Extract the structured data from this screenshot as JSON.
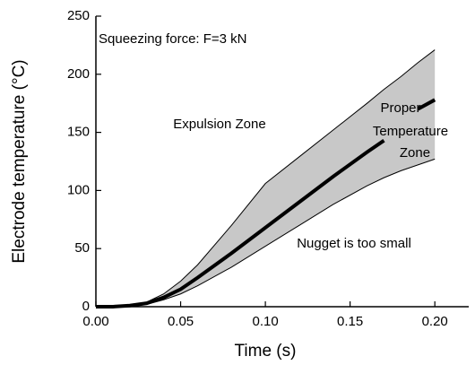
{
  "chart_data": {
    "type": "line",
    "x_label": "Time (s)",
    "y_label": "Electrode temperature (°C)",
    "x": [
      0,
      0.01,
      0.02,
      0.03,
      0.04,
      0.05,
      0.06,
      0.08,
      0.1,
      0.12,
      0.14,
      0.16,
      0.17,
      0.18,
      0.19,
      0.2
    ],
    "band": {
      "upper": [
        0,
        0,
        1,
        4,
        11,
        22,
        36,
        70,
        106,
        129,
        152,
        175,
        187,
        198,
        210,
        221
      ],
      "lower": [
        0,
        0,
        1,
        2,
        6,
        11,
        18,
        34,
        52,
        70,
        88,
        104,
        111,
        117,
        122,
        127
      ],
      "fill": "#c8c8c8",
      "color": "#000000"
    },
    "series": [
      {
        "color": "#000000",
        "values": [
          0,
          0,
          1,
          3,
          8,
          15,
          25,
          46,
          68,
          90,
          112,
          133,
          143,
          null,
          170,
          178
        ]
      }
    ],
    "annotations": [
      "Squeezing force: F=3 kN",
      "Expulsion Zone",
      "Proper",
      "Temperature",
      "Zone",
      "Nugget is too small"
    ],
    "xlim": [
      0,
      0.22
    ],
    "ylim": [
      0,
      250
    ],
    "xticks": [
      {
        "value": 0,
        "label": "0.00"
      },
      {
        "value": 0.05,
        "label": "0.05"
      },
      {
        "value": 0.1,
        "label": "0.10"
      },
      {
        "value": 0.15,
        "label": "0.15"
      },
      {
        "value": 0.2,
        "label": "0.20"
      }
    ],
    "yticks": [
      0,
      50,
      100,
      150,
      200,
      250
    ]
  }
}
